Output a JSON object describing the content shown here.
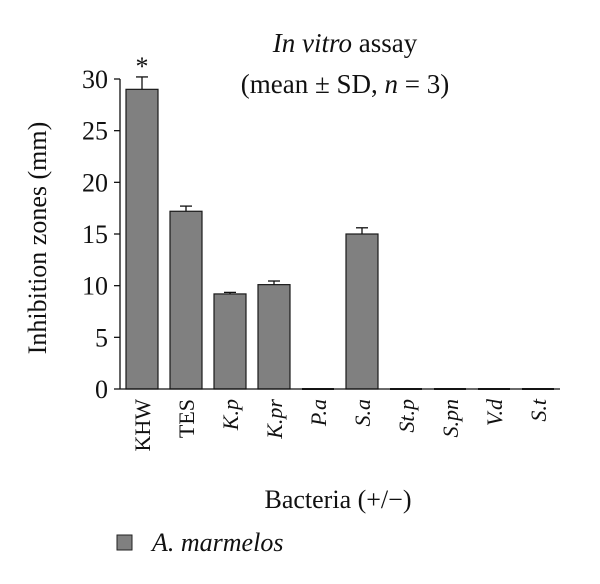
{
  "chart_data": {
    "type": "bar",
    "title": {
      "line1_italic": "In vitro",
      "line1_rest": " assay",
      "line2_pre": "(mean ± SD, ",
      "line2_italic": "n",
      "line2_post": " = 3)"
    },
    "ylabel": "Inhibition zones (mm)",
    "xlabel": "Bacteria (+/−)",
    "ylim": [
      0,
      30
    ],
    "yticks": [
      0,
      5,
      10,
      15,
      20,
      25,
      30
    ],
    "categories": [
      {
        "label": "KHW",
        "italic": false
      },
      {
        "label": "TES",
        "italic": false
      },
      {
        "label": "K.p",
        "italic": true
      },
      {
        "label": "K.pr",
        "italic": true
      },
      {
        "label": "P.a",
        "italic": true
      },
      {
        "label": "S.a",
        "italic": true
      },
      {
        "label": "St.p",
        "italic": true
      },
      {
        "label": "S.pn",
        "italic": true
      },
      {
        "label": "V.d",
        "italic": true
      },
      {
        "label": "S.t",
        "italic": true
      }
    ],
    "series": [
      {
        "name": "A. marmelos",
        "color": "#808080",
        "values": [
          29.0,
          17.2,
          9.2,
          10.1,
          0,
          15.0,
          0,
          0,
          0,
          0
        ],
        "errors": [
          1.2,
          0.5,
          0.15,
          0.35,
          0,
          0.6,
          0,
          0,
          0,
          0
        ]
      }
    ],
    "annotations": [
      {
        "category": "KHW",
        "text": "*"
      }
    ],
    "grid": false,
    "legend_position": "bottom-left"
  }
}
